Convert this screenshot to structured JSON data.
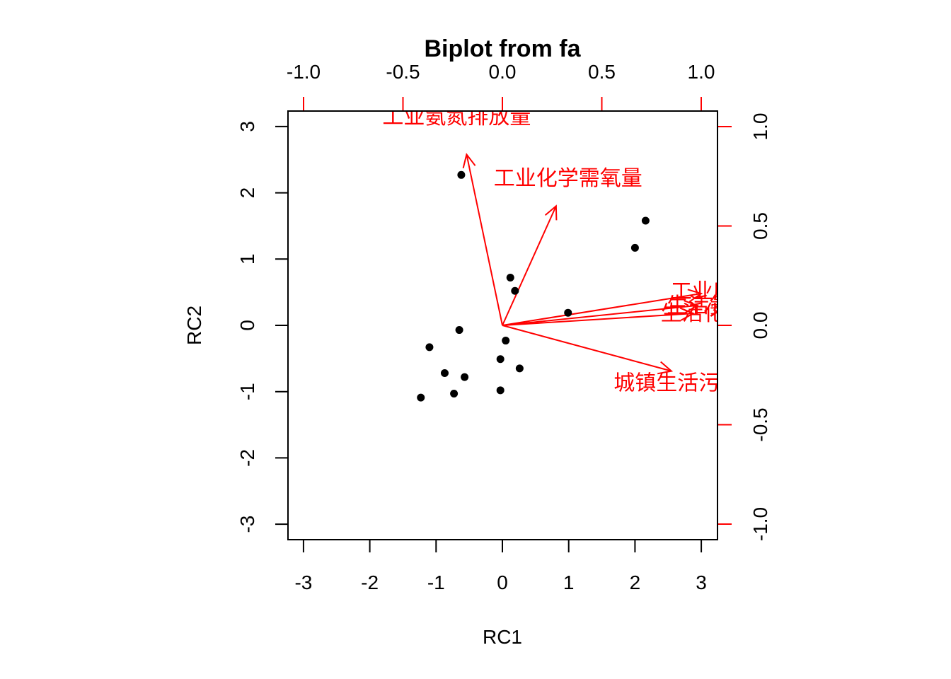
{
  "chart_data": {
    "type": "scatter",
    "title": "Biplot from fa",
    "xlabel": "RC1",
    "ylabel": "RC2",
    "xlim": [
      -3.2,
      3.2
    ],
    "ylim": [
      -3.2,
      3.25
    ],
    "loading_lim": [
      -1.08,
      1.08
    ],
    "bottom_ticks": [
      "-3",
      "-2",
      "-1",
      "0",
      "1",
      "2",
      "3"
    ],
    "left_ticks": [
      "-3",
      "-2",
      "-1",
      "0",
      "1",
      "2",
      "3"
    ],
    "top_ticks": [
      "-1.0",
      "-0.5",
      "0.0",
      "0.5",
      "1.0"
    ],
    "right_ticks": [
      "-1.0",
      "-0.5",
      "0.0",
      "0.5",
      "1.0"
    ],
    "loading_color": "#ff0000",
    "point_color": "#000000",
    "scores": [
      {
        "x": -0.62,
        "y": 2.27
      },
      {
        "x": 2.16,
        "y": 1.58
      },
      {
        "x": 2.0,
        "y": 1.17
      },
      {
        "x": 0.12,
        "y": 0.72
      },
      {
        "x": 0.19,
        "y": 0.52
      },
      {
        "x": 0.99,
        "y": 0.19
      },
      {
        "x": -0.65,
        "y": -0.07
      },
      {
        "x": -1.1,
        "y": -0.33
      },
      {
        "x": 0.05,
        "y": -0.23
      },
      {
        "x": -0.03,
        "y": -0.51
      },
      {
        "x": 0.26,
        "y": -0.65
      },
      {
        "x": -0.87,
        "y": -0.72
      },
      {
        "x": -0.57,
        "y": -0.78
      },
      {
        "x": -0.73,
        "y": -1.03
      },
      {
        "x": -0.03,
        "y": -0.98
      },
      {
        "x": -1.23,
        "y": -1.09
      }
    ],
    "loadings": [
      {
        "name": "工业氨氮排放量",
        "rc1": -0.18,
        "rc2": 0.86,
        "label_rc1": -0.23,
        "label_rc2": 1.05
      },
      {
        "name": "工业化学需氧量",
        "rc1": 0.27,
        "rc2": 0.6,
        "label_rc1": 0.33,
        "label_rc2": 0.74
      },
      {
        "name": "工业废水排放量",
        "rc1": 1.0,
        "rc2": 0.16,
        "label_rc1": 1.22,
        "label_rc2": 0.17
      },
      {
        "name": "生活氨氮排放量",
        "rc1": 0.98,
        "rc2": 0.1,
        "label_rc1": 1.2,
        "label_rc2": 0.1
      },
      {
        "name": "生活化学需氧量",
        "rc1": 0.96,
        "rc2": 0.06,
        "label_rc1": 1.17,
        "label_rc2": 0.06
      },
      {
        "name": "城镇生活污水排放量",
        "rc1": 0.85,
        "rc2": -0.23,
        "label_rc1": 1.04,
        "label_rc2": -0.29
      }
    ]
  }
}
